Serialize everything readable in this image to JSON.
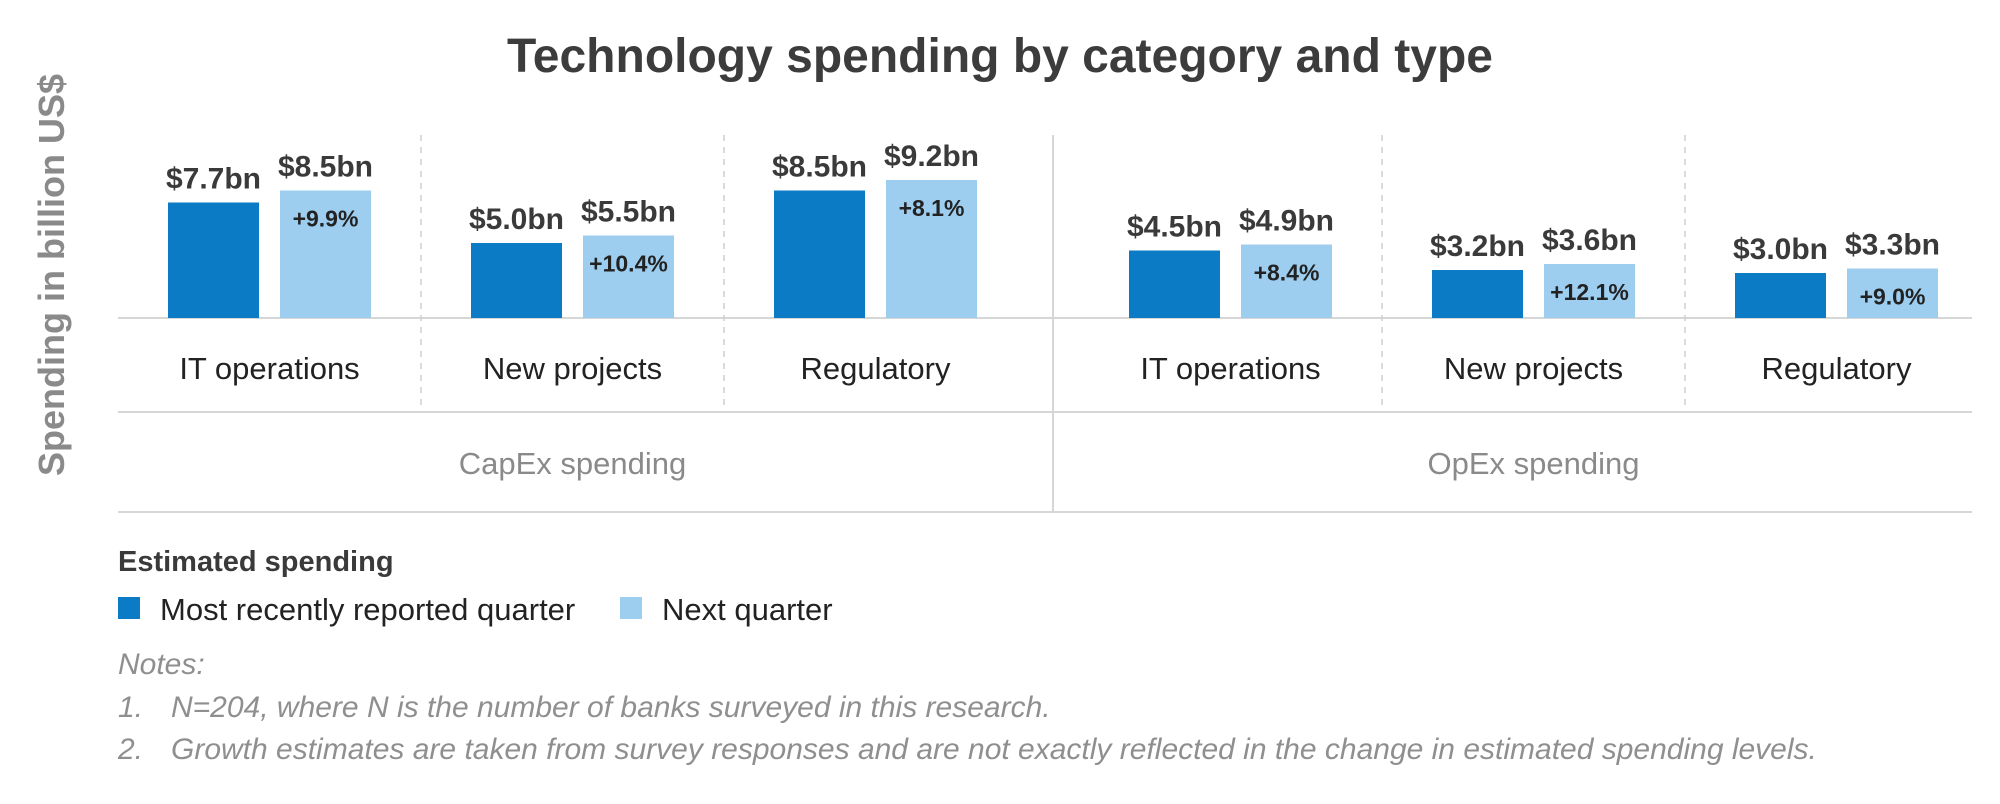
{
  "chart_data": {
    "type": "bar",
    "title": "Technology spending by category and type",
    "ylabel": "Spending in billion US$",
    "xlabel": "",
    "ylim": [
      0,
      10
    ],
    "grid": false,
    "legend_position": "bottom-left",
    "groups": [
      {
        "label": "CapEx spending",
        "categories": [
          {
            "label": "IT operations",
            "values": [
              7.7,
              8.5
            ],
            "value_labels": [
              "$7.7bn",
              "$8.5bn"
            ],
            "growth": "+9.9%"
          },
          {
            "label": "New projects",
            "values": [
              5.0,
              5.5
            ],
            "value_labels": [
              "$5.0bn",
              "$5.5bn"
            ],
            "growth": "+10.4%"
          },
          {
            "label": "Regulatory",
            "values": [
              8.5,
              9.2
            ],
            "value_labels": [
              "$8.5bn",
              "$9.2bn"
            ],
            "growth": "+8.1%"
          }
        ]
      },
      {
        "label": "OpEx spending",
        "categories": [
          {
            "label": "IT operations",
            "values": [
              4.5,
              4.9
            ],
            "value_labels": [
              "$4.5bn",
              "$4.9bn"
            ],
            "growth": "+8.4%"
          },
          {
            "label": "New projects",
            "values": [
              3.2,
              3.6
            ],
            "value_labels": [
              "$3.2bn",
              "$3.6bn"
            ],
            "growth": "+12.1%"
          },
          {
            "label": "Regulatory",
            "values": [
              3.0,
              3.3
            ],
            "value_labels": [
              "$3.0bn",
              "$3.3bn"
            ],
            "growth": "+9.0%"
          }
        ]
      }
    ],
    "series": [
      {
        "name": "Most recently reported quarter",
        "color": "#0a7bc4"
      },
      {
        "name": "Next quarter",
        "color": "#9dcef0"
      }
    ],
    "legend_title": "Estimated spending"
  },
  "notes": {
    "heading": "Notes:",
    "items": [
      {
        "number": "1.",
        "text": "N=204, where N is the number of banks surveyed in this research."
      },
      {
        "number": "2.",
        "text": "Growth estimates are taken from survey responses and are not exactly reflected in the change in estimated spending levels."
      }
    ]
  },
  "colors": {
    "gridline": "#d6d6d6",
    "divider_dashed": "#cfcfcf"
  }
}
